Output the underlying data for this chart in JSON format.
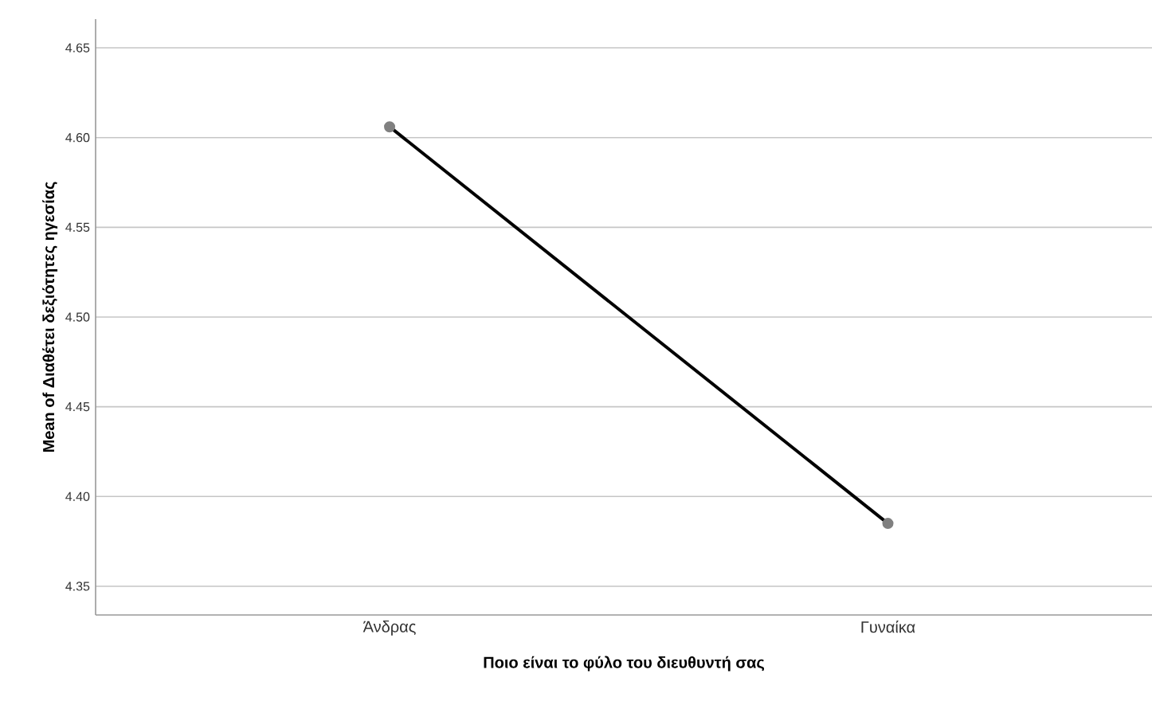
{
  "chart_data": {
    "type": "line",
    "xlabel": "Ποιο είναι το φύλο του διευθυντή σας",
    "ylabel": "Mean of Διαθέτει δεξιότητες ηγεσίας",
    "categories": [
      "Άνδρας",
      "Γυναίκα"
    ],
    "series": [
      {
        "color": "#000000",
        "values": [
          4.606,
          4.385
        ]
      }
    ],
    "ylim": [
      4.334,
      4.666
    ],
    "yticks": [
      {
        "value": 4.35,
        "label": "4.35"
      },
      {
        "value": 4.4,
        "label": "4.40"
      },
      {
        "value": 4.45,
        "label": "4.45"
      },
      {
        "value": 4.5,
        "label": "4.50"
      },
      {
        "value": 4.55,
        "label": "4.55"
      },
      {
        "value": 4.6,
        "label": "4.60"
      },
      {
        "value": 4.65,
        "label": "4.65"
      }
    ],
    "grid": "y",
    "marker": "circle",
    "line_style": "solid"
  }
}
